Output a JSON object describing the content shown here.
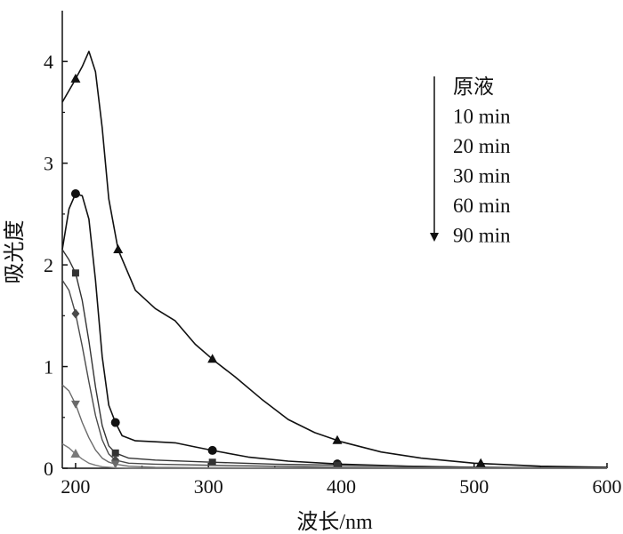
{
  "chart_data": {
    "type": "line",
    "title": "",
    "xlabel": "波长/nm",
    "ylabel": "吸光度",
    "xlim": [
      190,
      600
    ],
    "ylim": [
      0,
      4.5
    ],
    "xticks": [
      200,
      300,
      400,
      500,
      600
    ],
    "yticks": [
      0,
      1,
      2,
      3,
      4
    ],
    "grid": false,
    "legend": {
      "placement": "top-right",
      "direction_arrow": "down",
      "entries": [
        "原液",
        "10 min",
        "20 min",
        "30 min",
        "60 min",
        "90 min"
      ]
    },
    "series": [
      {
        "name": "原液",
        "marker": "triangle-up",
        "color": "#111111",
        "x": [
          190,
          198,
          205,
          210,
          215,
          220,
          225,
          232,
          245,
          260,
          275,
          290,
          305,
          320,
          340,
          360,
          380,
          400,
          430,
          460,
          500,
          550,
          600
        ],
        "y": [
          3.6,
          3.78,
          3.95,
          4.1,
          3.9,
          3.35,
          2.65,
          2.15,
          1.75,
          1.57,
          1.45,
          1.22,
          1.05,
          0.9,
          0.68,
          0.48,
          0.35,
          0.26,
          0.16,
          0.1,
          0.05,
          0.02,
          0.01
        ],
        "marker_x": [
          200,
          232,
          303,
          397,
          505
        ]
      },
      {
        "name": "10 min",
        "marker": "circle",
        "color": "#111111",
        "x": [
          190,
          195,
          200,
          205,
          210,
          215,
          220,
          225,
          230,
          235,
          245,
          260,
          275,
          290,
          305,
          330,
          360,
          400,
          450,
          500,
          550,
          600
        ],
        "y": [
          2.15,
          2.55,
          2.7,
          2.68,
          2.45,
          1.85,
          1.1,
          0.62,
          0.45,
          0.32,
          0.27,
          0.26,
          0.25,
          0.21,
          0.17,
          0.11,
          0.07,
          0.04,
          0.02,
          0.01,
          0.005,
          0.0
        ],
        "marker_x": [
          200,
          230,
          303,
          397
        ]
      },
      {
        "name": "20 min",
        "marker": "square",
        "color": "#333333",
        "x": [
          190,
          195,
          200,
          205,
          210,
          215,
          220,
          225,
          230,
          240,
          260,
          300,
          350,
          400,
          500,
          600
        ],
        "y": [
          2.15,
          2.05,
          1.92,
          1.65,
          1.25,
          0.8,
          0.42,
          0.22,
          0.15,
          0.1,
          0.08,
          0.06,
          0.04,
          0.03,
          0.01,
          0.0
        ],
        "marker_x": [
          200,
          230,
          303,
          397
        ]
      },
      {
        "name": "30 min",
        "marker": "diamond",
        "color": "#4a4a4a",
        "x": [
          190,
          195,
          200,
          205,
          210,
          215,
          220,
          225,
          230,
          240,
          260,
          300,
          400,
          500,
          600
        ],
        "y": [
          1.85,
          1.75,
          1.52,
          1.2,
          0.85,
          0.52,
          0.28,
          0.14,
          0.08,
          0.05,
          0.04,
          0.03,
          0.01,
          0.005,
          0.0
        ],
        "marker_x": [
          200,
          230
        ]
      },
      {
        "name": "60 min",
        "marker": "triangle-down",
        "color": "#6a6a6a",
        "x": [
          190,
          195,
          200,
          205,
          210,
          215,
          220,
          225,
          230,
          240,
          260,
          300,
          400,
          600
        ],
        "y": [
          0.82,
          0.76,
          0.63,
          0.45,
          0.3,
          0.18,
          0.1,
          0.06,
          0.04,
          0.02,
          0.01,
          0.005,
          0.0,
          0.0
        ],
        "marker_x": [
          200,
          230
        ]
      },
      {
        "name": "90 min",
        "marker": "triangle-up",
        "color": "#7a7a7a",
        "x": [
          190,
          195,
          200,
          205,
          210,
          215,
          220,
          230,
          250,
          300,
          600
        ],
        "y": [
          0.24,
          0.2,
          0.14,
          0.09,
          0.05,
          0.03,
          0.015,
          0.005,
          0.0,
          0.0,
          0.0
        ],
        "marker_x": [
          200
        ]
      }
    ]
  }
}
